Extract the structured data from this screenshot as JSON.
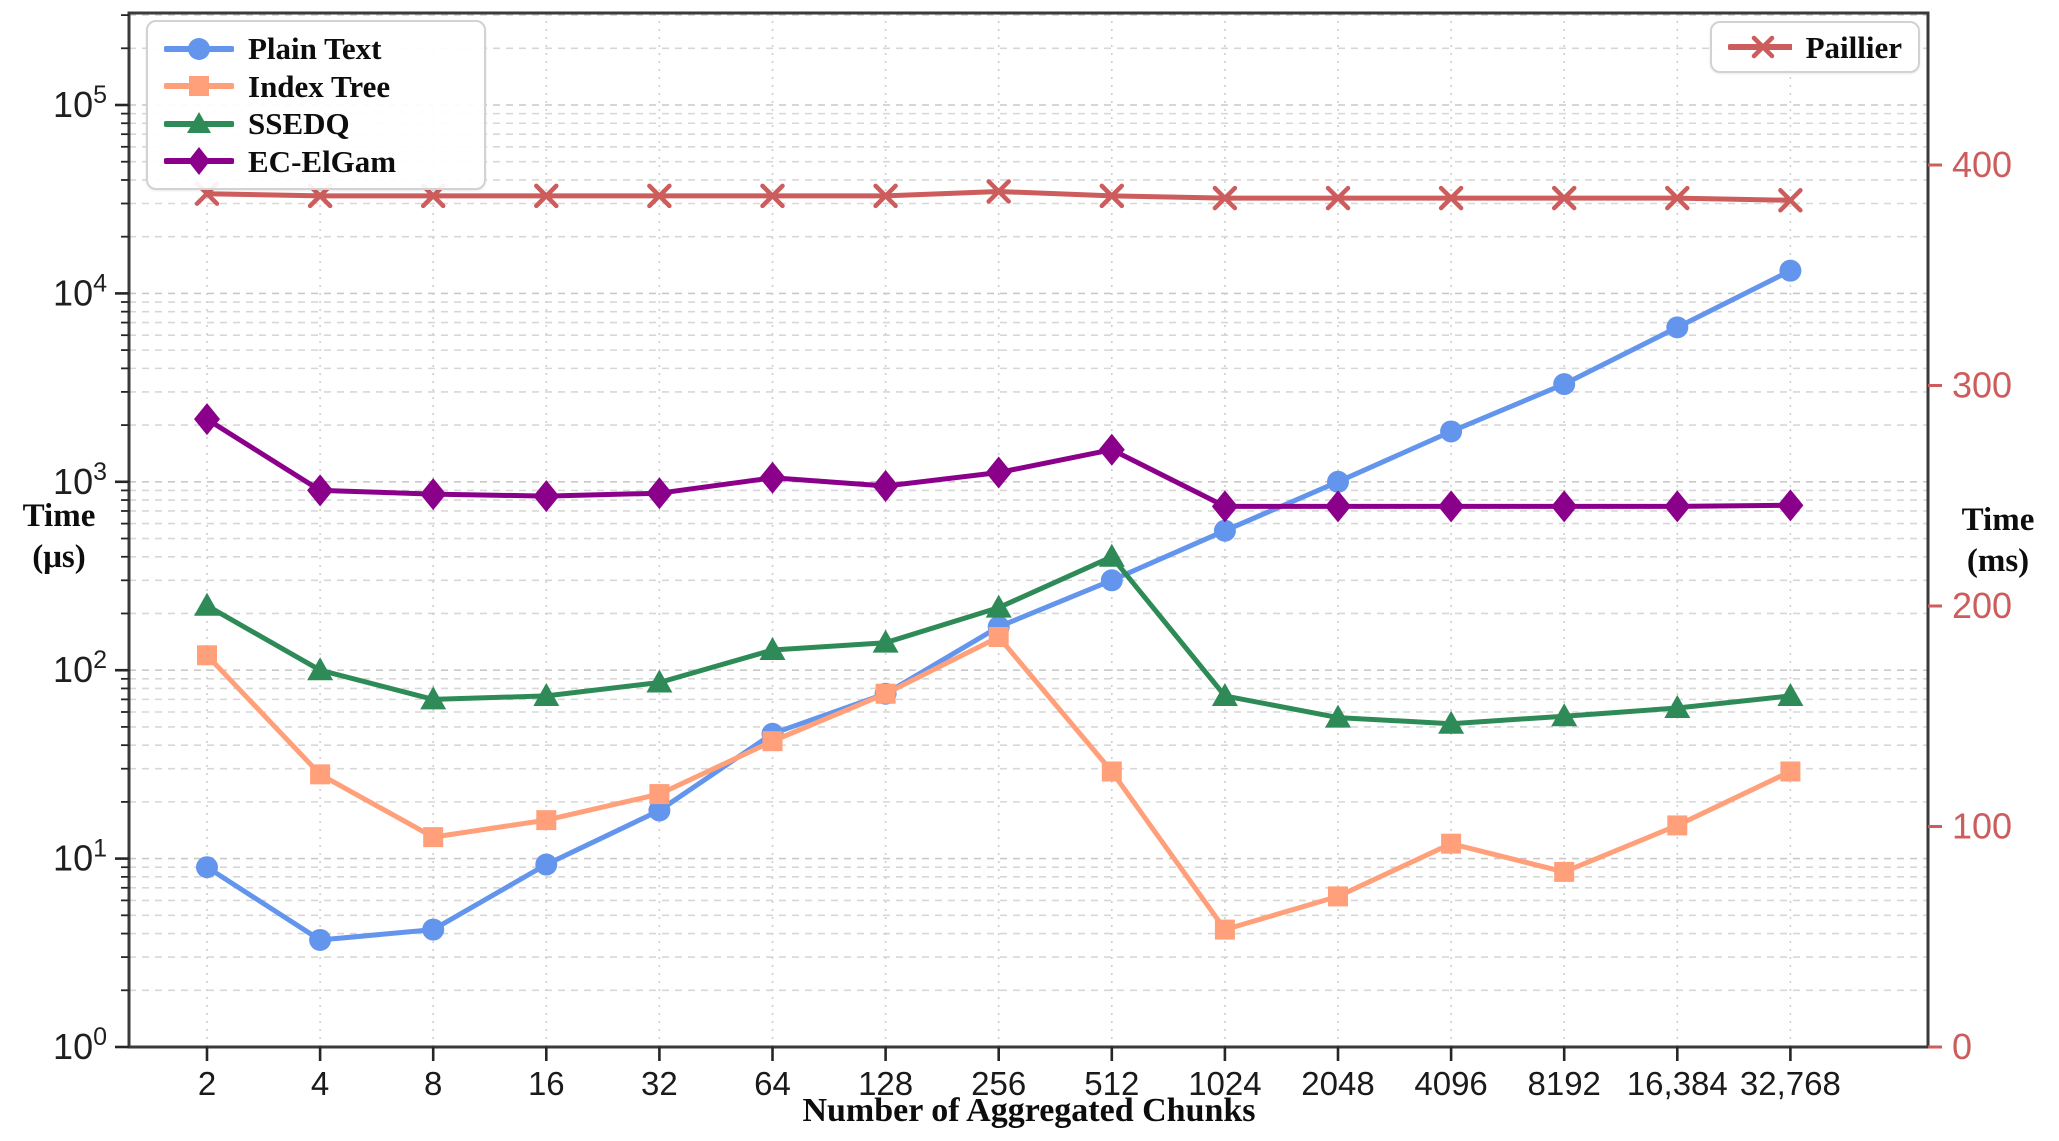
{
  "chart_data": {
    "type": "line",
    "xlabel": "Number of Aggregated Chunks",
    "left_axis": {
      "title_line1": "Time",
      "title_line2": "(μs)",
      "scale": "log",
      "tick_exponents": [
        0,
        1,
        2,
        3,
        4,
        5
      ],
      "tick_base": "10",
      "range": [
        1,
        316000
      ],
      "color": "#1f1f1f"
    },
    "right_axis": {
      "title_line1": "Time",
      "title_line2": "(ms)",
      "scale": "linear",
      "ticks": [
        "0",
        "100",
        "200",
        "300",
        "400"
      ],
      "tick_values": [
        0,
        100,
        200,
        300,
        400
      ],
      "range": [
        0,
        473
      ],
      "color": "#cd5c5c"
    },
    "categories": [
      "2",
      "4",
      "8",
      "16",
      "32",
      "64",
      "128",
      "256",
      "512",
      "1024",
      "2048",
      "4096",
      "8192",
      "16,384",
      "32,768"
    ],
    "grid": "both-dashed",
    "legend_positions": {
      "main": "upper-left",
      "paillier": "upper-right"
    },
    "series": [
      {
        "name": "Plain Text",
        "axis": "left",
        "marker": "circle",
        "color": "#6495ed",
        "values": [
          9,
          3.7,
          4.2,
          9.3,
          18,
          46,
          75,
          170,
          300,
          550,
          1000,
          1850,
          3300,
          6600,
          13200
        ]
      },
      {
        "name": "Index Tree",
        "axis": "left",
        "marker": "square",
        "color": "#ffa07a",
        "values": [
          120,
          28,
          13,
          16,
          22,
          42,
          75,
          150,
          29,
          4.2,
          6.3,
          12,
          8.5,
          15,
          29
        ]
      },
      {
        "name": "SSEDQ",
        "axis": "left",
        "marker": "triangle",
        "color": "#2e8b57",
        "values": [
          220,
          100,
          70,
          73,
          86,
          128,
          140,
          215,
          400,
          73,
          56,
          52,
          57,
          63,
          73
        ]
      },
      {
        "name": "EC-ElGam",
        "axis": "left",
        "marker": "diamond",
        "color": "#8b008b",
        "values": [
          2150,
          900,
          860,
          840,
          870,
          1050,
          950,
          1120,
          1480,
          740,
          740,
          740,
          740,
          740,
          750
        ]
      },
      {
        "name": "Paillier",
        "axis": "right",
        "marker": "x",
        "color": "#cd5c5c",
        "values": [
          387,
          386,
          386,
          386,
          386,
          386,
          386,
          388,
          386,
          385,
          385,
          385,
          385,
          385,
          384
        ]
      }
    ]
  }
}
